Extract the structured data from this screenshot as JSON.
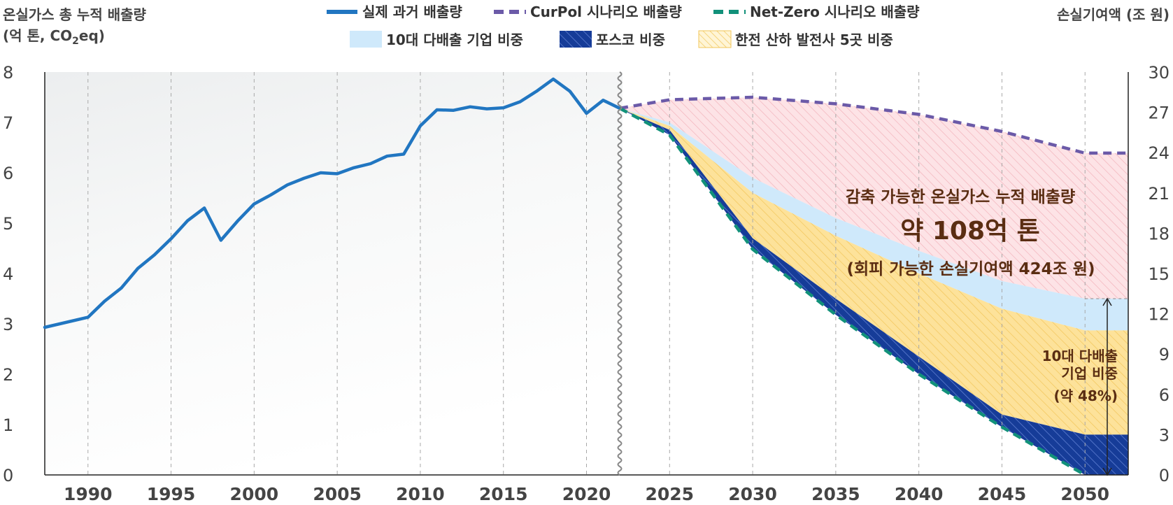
{
  "chart_data": {
    "type": "line",
    "title": "",
    "ylabel_left_line1": "온실가스 총 누적 배출량",
    "ylabel_left_line2_pre": "(억 톤, CO",
    "ylabel_left_line2_sub": "2",
    "ylabel_left_line2_post": "eq)",
    "ylabel_right": "손실기여액 (조 원)",
    "ylim_left": [
      0,
      8
    ],
    "ylim_right": [
      0,
      30
    ],
    "xlim": [
      1987.4,
      2052.6
    ],
    "x_ticks": [
      1990,
      1995,
      2000,
      2005,
      2010,
      2015,
      2020,
      2025,
      2030,
      2035,
      2040,
      2045,
      2050
    ],
    "y_ticks_left": [
      0,
      1,
      2,
      3,
      4,
      5,
      6,
      7,
      8
    ],
    "y_ticks_right": [
      0,
      3,
      6,
      9,
      12,
      15,
      18,
      21,
      24,
      27,
      30
    ],
    "grid": "vertical-dashed",
    "legend": {
      "position": "top",
      "items": [
        {
          "label": "실제 과거 배출량",
          "kind": "line",
          "color": "#2176c1"
        },
        {
          "label": "CurPol 시나리오 배출량",
          "kind": "dashed",
          "color": "#6b5aa8"
        },
        {
          "label": "Net-Zero 시나리오 배출량",
          "kind": "dashed",
          "color": "#12917a"
        },
        {
          "label": "10대 다배출 기업 비중",
          "kind": "fill",
          "color": "#cfe9fb"
        },
        {
          "label": "포스코 비중",
          "kind": "hatch-dark",
          "color": "#173d9a"
        },
        {
          "label": "한전 산하 발전사 5곳 비중",
          "kind": "hatch-light",
          "color": "#fde39a"
        }
      ]
    },
    "series": [
      {
        "name": "실제 과거 배출량",
        "color": "#2176c1",
        "style": "solid",
        "x": [
          1987.4,
          1990,
          1991,
          1992,
          1993,
          1994,
          1995,
          1996,
          1997,
          1998,
          1999,
          2000,
          2001,
          2002,
          2003,
          2004,
          2005,
          2006,
          2007,
          2008,
          2009,
          2010,
          2011,
          2012,
          2013,
          2014,
          2015,
          2016,
          2017,
          2018,
          2019,
          2020,
          2021,
          2022
        ],
        "y": [
          2.93,
          3.13,
          3.45,
          3.71,
          4.1,
          4.37,
          4.69,
          5.05,
          5.3,
          4.66,
          5.04,
          5.38,
          5.56,
          5.76,
          5.89,
          6.0,
          5.98,
          6.1,
          6.18,
          6.33,
          6.37,
          6.93,
          7.25,
          7.24,
          7.31,
          7.27,
          7.29,
          7.41,
          7.62,
          7.86,
          7.62,
          7.18,
          7.44,
          7.28
        ]
      },
      {
        "name": "CurPol 시나리오 배출량",
        "color": "#6b5aa8",
        "style": "dashed",
        "x": [
          2022,
          2025,
          2030,
          2035,
          2040,
          2045,
          2050,
          2052.6
        ],
        "y": [
          7.28,
          7.45,
          7.5,
          7.37,
          7.16,
          6.82,
          6.39,
          6.39
        ]
      },
      {
        "name": "Net-Zero 시나리오 배출량",
        "color": "#12917a",
        "style": "dashed",
        "x": [
          2022,
          2025,
          2030,
          2035,
          2040,
          2045,
          2050
        ],
        "y": [
          7.28,
          6.75,
          4.48,
          3.18,
          2.0,
          0.95,
          0.0
        ]
      }
    ],
    "bands": {
      "x": [
        2022,
        2025,
        2030,
        2035,
        2040,
        2045,
        2050,
        2052.6
      ],
      "net_zero": [
        7.28,
        6.75,
        4.48,
        3.18,
        2.0,
        0.95,
        0.0,
        0.0
      ],
      "posco_top": [
        7.28,
        6.85,
        4.7,
        3.5,
        2.35,
        1.2,
        0.8,
        0.8
      ],
      "kepco_top": [
        7.28,
        6.93,
        5.6,
        4.75,
        4.0,
        3.3,
        2.87,
        2.87
      ],
      "top10_top": [
        7.28,
        7.0,
        5.9,
        5.1,
        4.45,
        3.85,
        3.5,
        3.5
      ],
      "curpol": [
        7.28,
        7.45,
        7.5,
        7.37,
        7.16,
        6.82,
        6.39,
        6.39
      ]
    },
    "annotations": {
      "reduction_label": "감축 가능한 온실가스 누적 배출량",
      "reduction_value": "약 108억 톤",
      "avoided_loss": "(회피 가능한 손실기여액 424조 원)",
      "top10_line1": "10대 다배출",
      "top10_line2": "기업 비중",
      "top10_share": "(약 48%)"
    }
  }
}
